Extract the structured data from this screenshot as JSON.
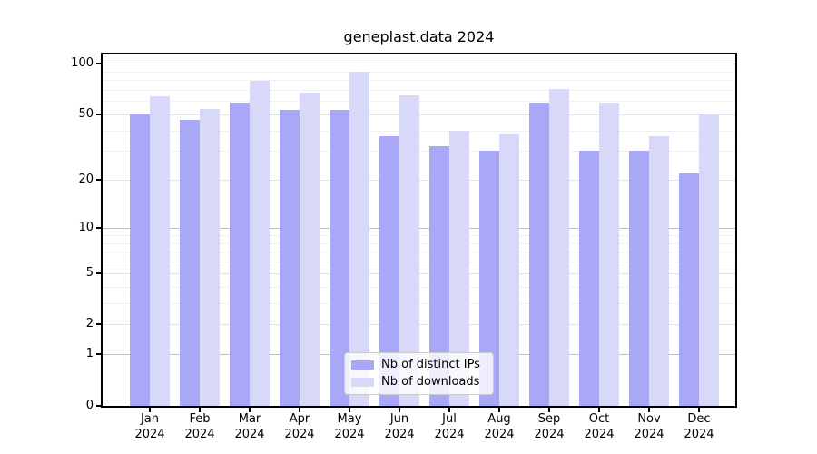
{
  "figure": {
    "background": "#ffffff"
  },
  "chart_data": {
    "type": "bar",
    "title": "geneplast.data 2024",
    "year": "2024",
    "categories": [
      "Jan",
      "Feb",
      "Mar",
      "Apr",
      "May",
      "Jun",
      "Jul",
      "Aug",
      "Sep",
      "Oct",
      "Nov",
      "Dec"
    ],
    "series": [
      {
        "name": "Nb of distinct IPs",
        "color": "#a8a8f6",
        "values": [
          50,
          46,
          59,
          53,
          53,
          37,
          32,
          30,
          59,
          30,
          30,
          22
        ]
      },
      {
        "name": "Nb of downloads",
        "color": "#d8d8f8",
        "values": [
          64,
          54,
          79,
          67,
          89,
          65,
          40,
          38,
          71,
          59,
          37,
          50
        ]
      }
    ],
    "xlabel": "",
    "ylabel": "",
    "yscale": "log10(value+1)",
    "ylim": [
      0,
      100
    ],
    "yticks": [
      100,
      50,
      20,
      10,
      5,
      2,
      1,
      0
    ],
    "minor_gridlines": [
      90,
      80,
      70,
      60,
      40,
      30,
      9,
      8,
      7,
      6,
      4,
      3
    ],
    "grid": "on",
    "legend_position": "lower center"
  }
}
